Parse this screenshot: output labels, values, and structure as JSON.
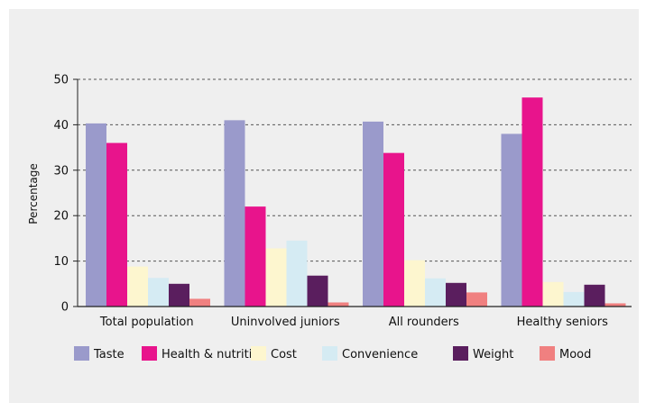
{
  "chart_data": {
    "type": "bar",
    "ylabel": "Percentage",
    "xlabel": "",
    "ylim": [
      0,
      50
    ],
    "yticks": [
      0,
      10,
      20,
      30,
      40,
      50
    ],
    "grid": true,
    "legend_position": "bottom",
    "categories": [
      "Total population",
      "Uninvolved juniors",
      "All rounders",
      "Healthy seniors"
    ],
    "series": [
      {
        "name": "Taste",
        "color": "#9a9acb",
        "values": [
          40.3,
          41,
          40.7,
          38
        ]
      },
      {
        "name": "Health & nutrition",
        "color": "#e8148c",
        "values": [
          36,
          22,
          33.8,
          46
        ]
      },
      {
        "name": "Cost",
        "color": "#fdf6cf",
        "values": [
          8.8,
          12.8,
          10.2,
          5.4
        ]
      },
      {
        "name": "Convenience",
        "color": "#d5ebf3",
        "values": [
          6.3,
          14.5,
          6.2,
          3.2
        ]
      },
      {
        "name": "Weight",
        "color": "#5a1e5e",
        "values": [
          5,
          6.8,
          5.2,
          4.8
        ]
      },
      {
        "name": "Mood",
        "color": "#f08080",
        "values": [
          1.7,
          0.9,
          3.1,
          0.7
        ]
      }
    ]
  }
}
